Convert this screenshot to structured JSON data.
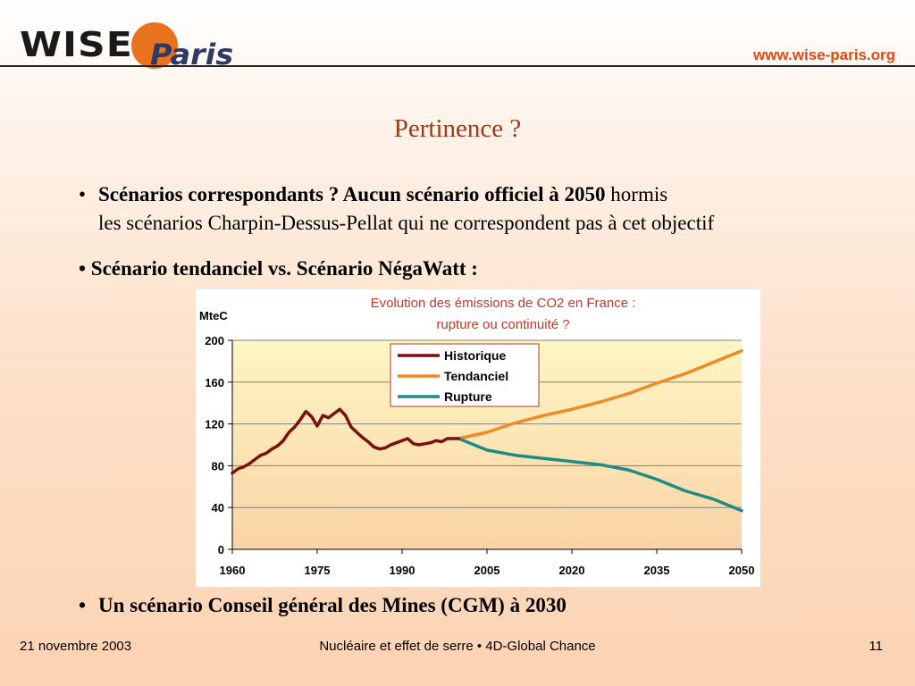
{
  "header": {
    "logo_text_1": "WISE",
    "logo_text_2": "Paris",
    "url": "www.wise-paris.org",
    "brand_orange": "#e8721d",
    "brand_navy": "#2d3a66"
  },
  "slide": {
    "title": "Pertinence ?",
    "bullet1_bold": "Scénarios correspondants ? Aucun scénario officiel à 2050",
    "bullet1_rest": " hormis",
    "bullet1_line2": "les scénarios Charpin-Dessus-Pellat qui ne correspondent pas à cet objectif",
    "bullet2": "• Scénario tendanciel vs. Scénario NégaWatt :",
    "bullet3": "Un scénario Conseil général des Mines (CGM) à 2030",
    "bullet_symbol": "•"
  },
  "chart_data": {
    "type": "line",
    "title": "Evolution des émissions de CO2 en France :",
    "subtitle": "rupture ou continuité ?",
    "ylabel": "MteC",
    "xlim": [
      1960,
      2050
    ],
    "ylim": [
      0,
      200
    ],
    "x_ticks": [
      "1960",
      "1975",
      "1990",
      "2005",
      "2020",
      "2035",
      "2050"
    ],
    "y_ticks": [
      "0",
      "40",
      "80",
      "120",
      "160",
      "200"
    ],
    "legend_position": "top-center",
    "grid": true,
    "series": [
      {
        "name": "Historique",
        "color": "#7a1010",
        "points": [
          [
            1960,
            73
          ],
          [
            1961,
            77
          ],
          [
            1962,
            79
          ],
          [
            1963,
            82
          ],
          [
            1964,
            86
          ],
          [
            1965,
            90
          ],
          [
            1966,
            92
          ],
          [
            1967,
            96
          ],
          [
            1968,
            99
          ],
          [
            1969,
            104
          ],
          [
            1970,
            112
          ],
          [
            1971,
            117
          ],
          [
            1972,
            124
          ],
          [
            1973,
            132
          ],
          [
            1974,
            127
          ],
          [
            1975,
            118
          ],
          [
            1976,
            128
          ],
          [
            1977,
            126
          ],
          [
            1978,
            130
          ],
          [
            1979,
            134
          ],
          [
            1980,
            128
          ],
          [
            1981,
            117
          ],
          [
            1982,
            112
          ],
          [
            1983,
            107
          ],
          [
            1984,
            103
          ],
          [
            1985,
            98
          ],
          [
            1986,
            96
          ],
          [
            1987,
            97
          ],
          [
            1988,
            100
          ],
          [
            1989,
            102
          ],
          [
            1990,
            104
          ],
          [
            1991,
            106
          ],
          [
            1992,
            101
          ],
          [
            1993,
            100
          ],
          [
            1994,
            101
          ],
          [
            1995,
            102
          ],
          [
            1996,
            104
          ],
          [
            1997,
            103
          ],
          [
            1998,
            106
          ],
          [
            1999,
            106
          ],
          [
            2000,
            106
          ]
        ]
      },
      {
        "name": "Tendanciel",
        "color": "#f08a24",
        "points": [
          [
            2000,
            106
          ],
          [
            2005,
            112
          ],
          [
            2010,
            121
          ],
          [
            2015,
            128
          ],
          [
            2020,
            134
          ],
          [
            2025,
            141
          ],
          [
            2030,
            149
          ],
          [
            2035,
            159
          ],
          [
            2040,
            168
          ],
          [
            2045,
            179
          ],
          [
            2050,
            190
          ]
        ]
      },
      {
        "name": "Rupture",
        "color": "#1f8b86",
        "points": [
          [
            2000,
            106
          ],
          [
            2005,
            95
          ],
          [
            2010,
            90
          ],
          [
            2015,
            87
          ],
          [
            2020,
            84
          ],
          [
            2025,
            81
          ],
          [
            2030,
            76
          ],
          [
            2035,
            67
          ],
          [
            2040,
            56
          ],
          [
            2045,
            48
          ],
          [
            2050,
            37
          ]
        ]
      }
    ]
  },
  "footer": {
    "date": "21 novembre 2003",
    "center": "Nucléaire et effet de serre • 4D-Global Chance",
    "page": "11"
  }
}
